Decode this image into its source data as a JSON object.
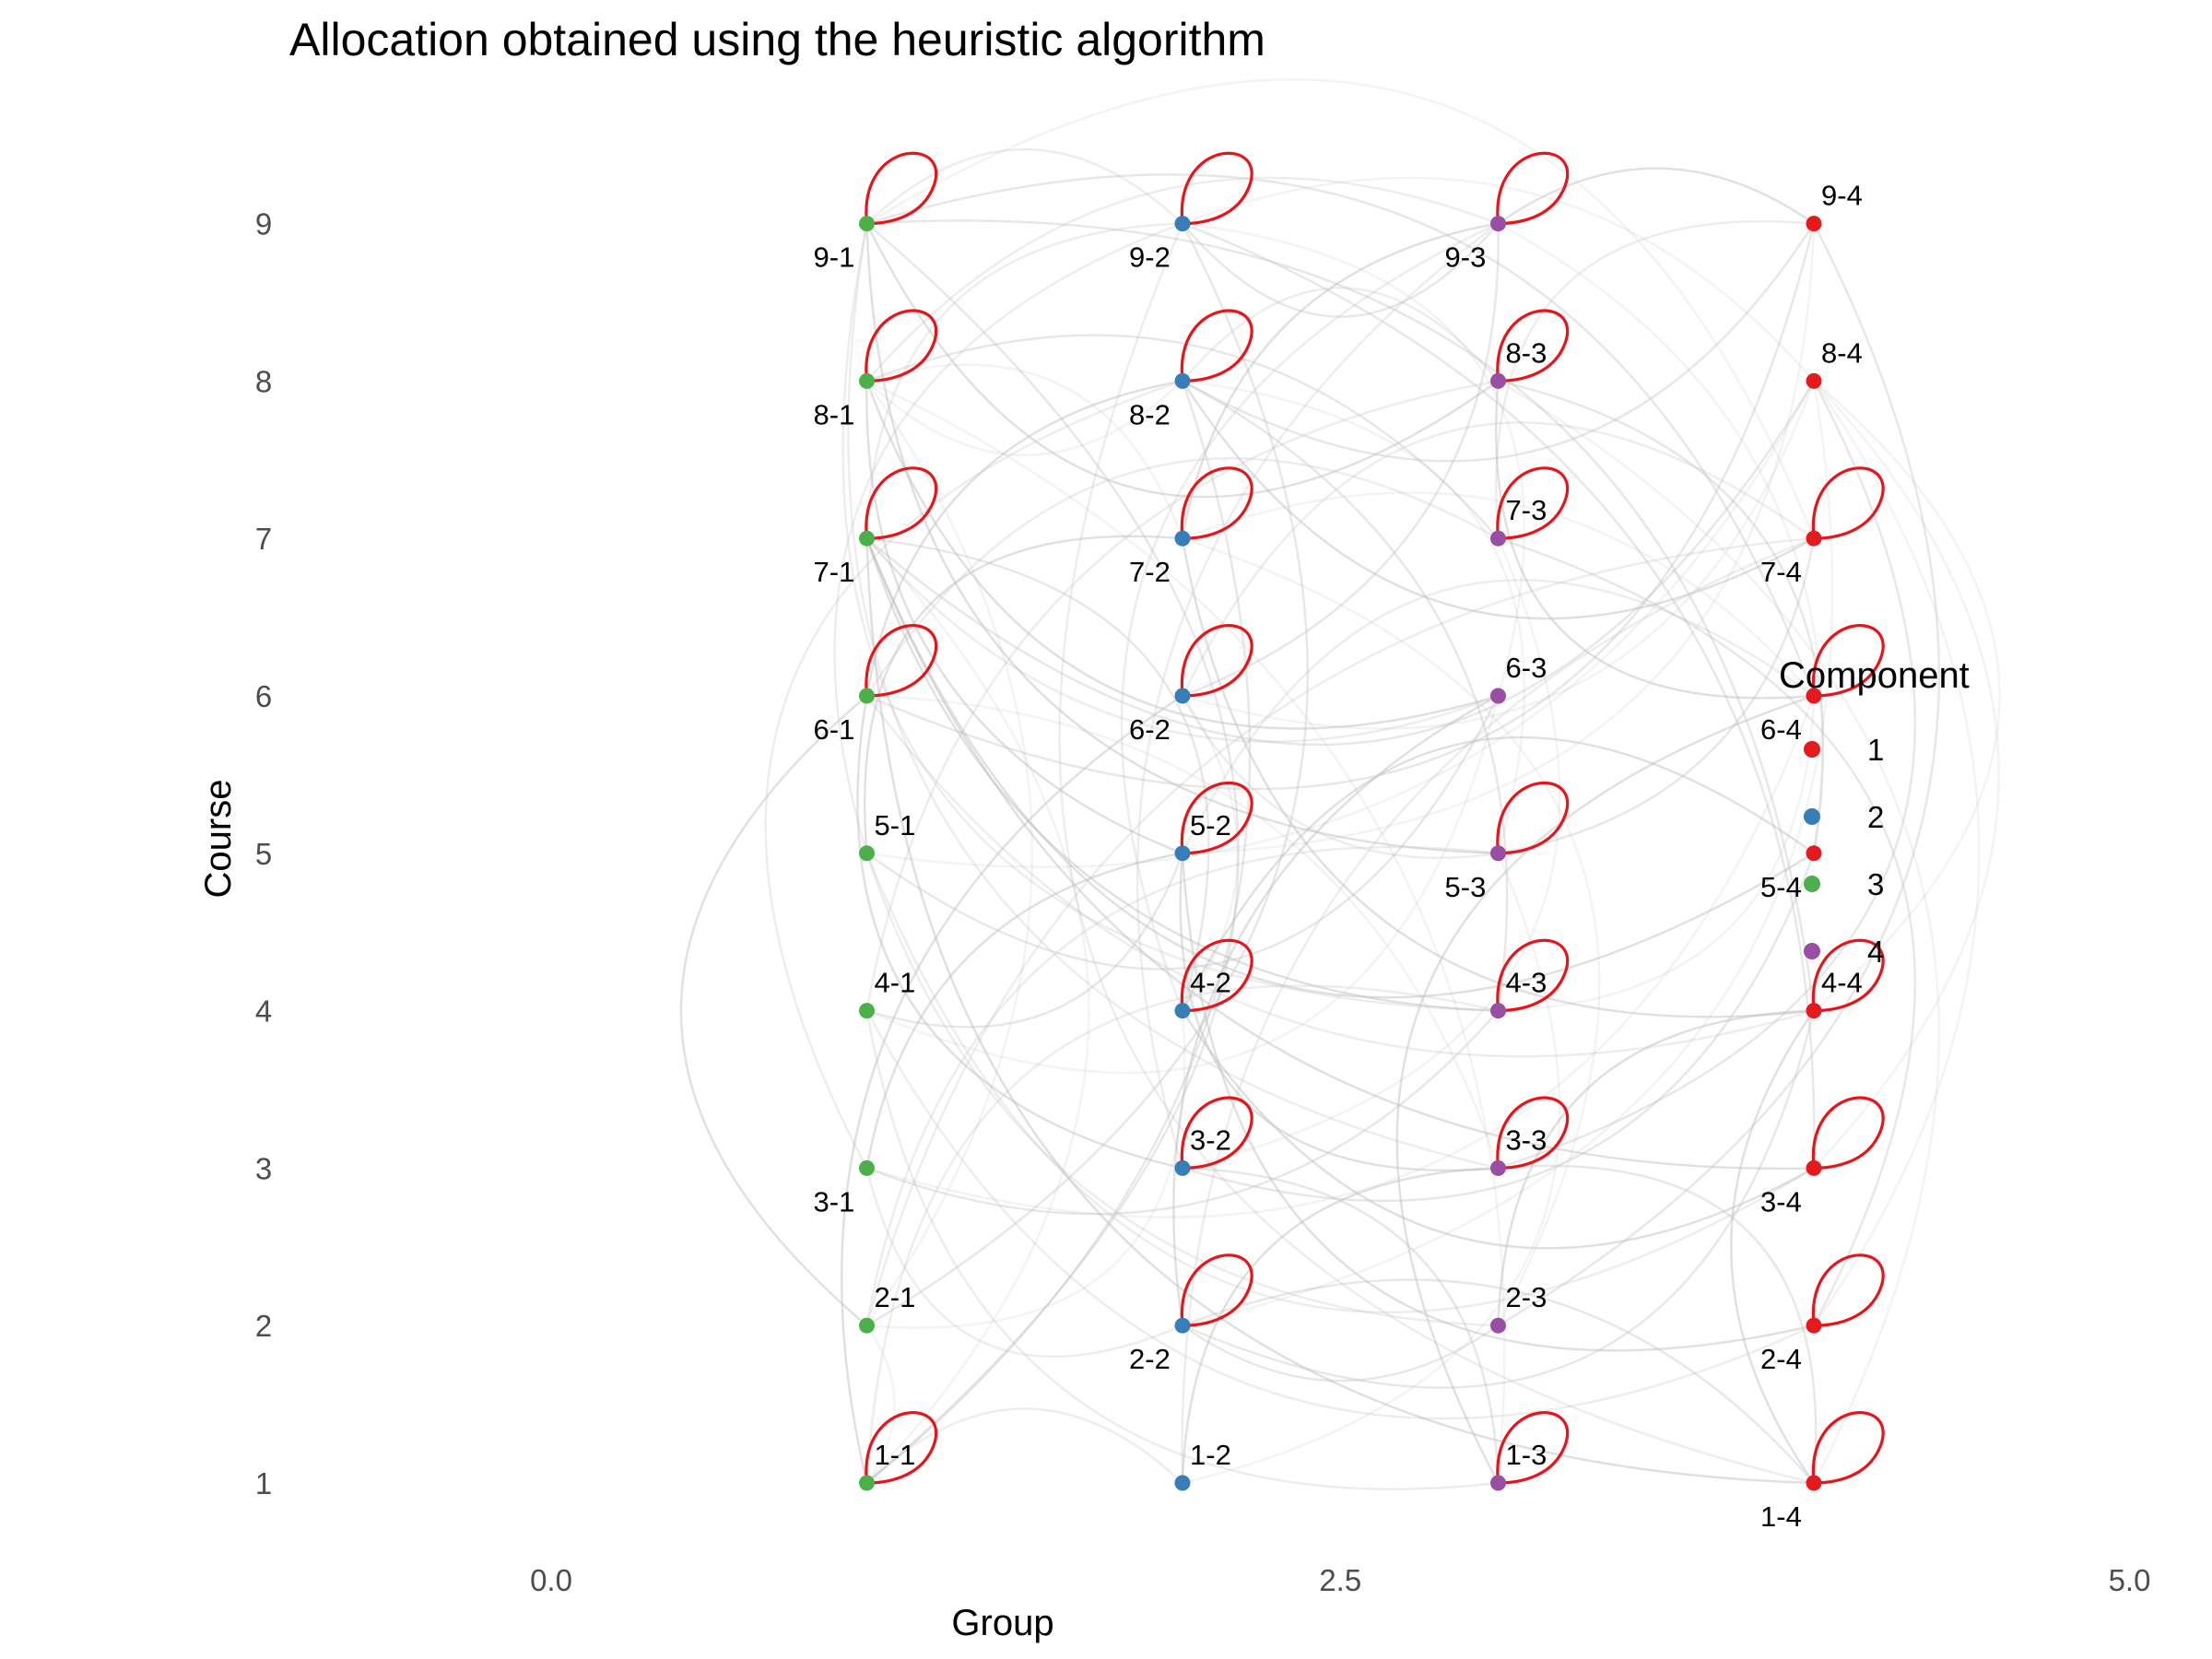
{
  "chart_data": {
    "type": "network",
    "title": "Allocation obtained using the heuristic algorithm",
    "xlabel": "Group",
    "ylabel": "Course",
    "xlim": [
      -1.0,
      7.0
    ],
    "ylim": [
      0.7,
      9.5
    ],
    "x_ticks": [
      0.0,
      2.5,
      5.0
    ],
    "x_tick_labels": [
      "0.0",
      "2.5",
      "5.0"
    ],
    "y_ticks": [
      1,
      2,
      3,
      4,
      5,
      6,
      7,
      8,
      9
    ],
    "y_tick_labels": [
      "1",
      "2",
      "3",
      "4",
      "5",
      "6",
      "7",
      "8",
      "9"
    ],
    "grid": false,
    "legend": {
      "title": "Component",
      "position": "right",
      "items": [
        {
          "label": "1",
          "color": "#E41A1C"
        },
        {
          "label": "2",
          "color": "#377EB8"
        },
        {
          "label": "3",
          "color": "#4DAF4A"
        },
        {
          "label": "4",
          "color": "#984EA3"
        }
      ]
    },
    "loop_color": "#E8141A",
    "edge_color": "#BFBFBF",
    "nodes": [
      {
        "label": "1-1",
        "x": 1,
        "y": 1,
        "component": 3,
        "label_pos": "above",
        "loop": true
      },
      {
        "label": "1-2",
        "x": 2,
        "y": 1,
        "component": 2,
        "label_pos": "above",
        "loop": false
      },
      {
        "label": "1-3",
        "x": 3,
        "y": 1,
        "component": 4,
        "label_pos": "above",
        "loop": true
      },
      {
        "label": "1-4",
        "x": 4,
        "y": 1,
        "component": 1,
        "label_pos": "below",
        "loop": true
      },
      {
        "label": "2-1",
        "x": 1,
        "y": 2,
        "component": 3,
        "label_pos": "above",
        "loop": false
      },
      {
        "label": "2-2",
        "x": 2,
        "y": 2,
        "component": 2,
        "label_pos": "below",
        "loop": true
      },
      {
        "label": "2-3",
        "x": 3,
        "y": 2,
        "component": 4,
        "label_pos": "above",
        "loop": false
      },
      {
        "label": "2-4",
        "x": 4,
        "y": 2,
        "component": 1,
        "label_pos": "below",
        "loop": true
      },
      {
        "label": "3-1",
        "x": 1,
        "y": 3,
        "component": 3,
        "label_pos": "below",
        "loop": false
      },
      {
        "label": "3-2",
        "x": 2,
        "y": 3,
        "component": 2,
        "label_pos": "above",
        "loop": true
      },
      {
        "label": "3-3",
        "x": 3,
        "y": 3,
        "component": 4,
        "label_pos": "above",
        "loop": true
      },
      {
        "label": "3-4",
        "x": 4,
        "y": 3,
        "component": 1,
        "label_pos": "below",
        "loop": true
      },
      {
        "label": "4-1",
        "x": 1,
        "y": 4,
        "component": 3,
        "label_pos": "above",
        "loop": false
      },
      {
        "label": "4-2",
        "x": 2,
        "y": 4,
        "component": 2,
        "label_pos": "above",
        "loop": true
      },
      {
        "label": "4-3",
        "x": 3,
        "y": 4,
        "component": 4,
        "label_pos": "above",
        "loop": true
      },
      {
        "label": "4-4",
        "x": 4,
        "y": 4,
        "component": 1,
        "label_pos": "above",
        "loop": true
      },
      {
        "label": "5-1",
        "x": 1,
        "y": 5,
        "component": 3,
        "label_pos": "above",
        "loop": false
      },
      {
        "label": "5-2",
        "x": 2,
        "y": 5,
        "component": 2,
        "label_pos": "above",
        "loop": true
      },
      {
        "label": "5-3",
        "x": 3,
        "y": 5,
        "component": 4,
        "label_pos": "below",
        "loop": true
      },
      {
        "label": "5-4",
        "x": 4,
        "y": 5,
        "component": 1,
        "label_pos": "below",
        "loop": false
      },
      {
        "label": "6-1",
        "x": 1,
        "y": 6,
        "component": 3,
        "label_pos": "below",
        "loop": true
      },
      {
        "label": "6-2",
        "x": 2,
        "y": 6,
        "component": 2,
        "label_pos": "below",
        "loop": true
      },
      {
        "label": "6-3",
        "x": 3,
        "y": 6,
        "component": 4,
        "label_pos": "above",
        "loop": false
      },
      {
        "label": "6-4",
        "x": 4,
        "y": 6,
        "component": 1,
        "label_pos": "below",
        "loop": true
      },
      {
        "label": "7-1",
        "x": 1,
        "y": 7,
        "component": 3,
        "label_pos": "below",
        "loop": true
      },
      {
        "label": "7-2",
        "x": 2,
        "y": 7,
        "component": 2,
        "label_pos": "below",
        "loop": true
      },
      {
        "label": "7-3",
        "x": 3,
        "y": 7,
        "component": 4,
        "label_pos": "above",
        "loop": true
      },
      {
        "label": "7-4",
        "x": 4,
        "y": 7,
        "component": 1,
        "label_pos": "below",
        "loop": true
      },
      {
        "label": "8-1",
        "x": 1,
        "y": 8,
        "component": 3,
        "label_pos": "below",
        "loop": true
      },
      {
        "label": "8-2",
        "x": 2,
        "y": 8,
        "component": 2,
        "label_pos": "below",
        "loop": true
      },
      {
        "label": "8-3",
        "x": 3,
        "y": 8,
        "component": 4,
        "label_pos": "above",
        "loop": true
      },
      {
        "label": "8-4",
        "x": 4,
        "y": 8,
        "component": 1,
        "label_pos": "above",
        "loop": false
      },
      {
        "label": "9-1",
        "x": 1,
        "y": 9,
        "component": 3,
        "label_pos": "below",
        "loop": true
      },
      {
        "label": "9-2",
        "x": 2,
        "y": 9,
        "component": 2,
        "label_pos": "below",
        "loop": true
      },
      {
        "label": "9-3",
        "x": 3,
        "y": 9,
        "component": 4,
        "label_pos": "below",
        "loop": true
      },
      {
        "label": "9-4",
        "x": 4,
        "y": 9,
        "component": 1,
        "label_pos": "above",
        "loop": false
      }
    ],
    "edges": [
      [
        "1-1",
        "2-1"
      ],
      [
        "1-1",
        "1-2"
      ],
      [
        "1-1",
        "9-1"
      ],
      [
        "1-1",
        "6-2"
      ],
      [
        "1-1",
        "7-1"
      ],
      [
        "1-1",
        "4-3"
      ],
      [
        "1-1",
        "8-2"
      ],
      [
        "1-2",
        "3-3"
      ],
      [
        "1-2",
        "5-3"
      ],
      [
        "1-2",
        "7-4"
      ],
      [
        "1-3",
        "3-2"
      ],
      [
        "1-3",
        "6-4"
      ],
      [
        "1-3",
        "8-1"
      ],
      [
        "1-3",
        "4-1"
      ],
      [
        "1-4",
        "3-3"
      ],
      [
        "1-4",
        "4-4"
      ],
      [
        "1-4",
        "8-3"
      ],
      [
        "1-4",
        "9-2"
      ],
      [
        "1-4",
        "2-2"
      ],
      [
        "1-4",
        "7-1"
      ],
      [
        "2-1",
        "4-2"
      ],
      [
        "2-1",
        "7-4"
      ],
      [
        "2-1",
        "9-2"
      ],
      [
        "2-1",
        "6-1"
      ],
      [
        "2-1",
        "8-1"
      ],
      [
        "2-1",
        "5-3"
      ],
      [
        "2-2",
        "4-4"
      ],
      [
        "2-2",
        "6-3"
      ],
      [
        "2-2",
        "8-4"
      ],
      [
        "2-2",
        "3-1"
      ],
      [
        "2-2",
        "2-3"
      ],
      [
        "2-3",
        "4-4"
      ],
      [
        "2-3",
        "7-2"
      ],
      [
        "2-3",
        "5-1"
      ],
      [
        "2-3",
        "9-4"
      ],
      [
        "2-4",
        "5-2"
      ],
      [
        "2-4",
        "8-4"
      ],
      [
        "2-4",
        "4-1"
      ],
      [
        "2-4",
        "7-3"
      ],
      [
        "3-1",
        "5-2"
      ],
      [
        "3-1",
        "6-4"
      ],
      [
        "3-1",
        "8-2"
      ],
      [
        "3-1",
        "4-3"
      ],
      [
        "3-2",
        "6-1"
      ],
      [
        "3-2",
        "7-3"
      ],
      [
        "3-2",
        "9-3"
      ],
      [
        "3-2",
        "5-4"
      ],
      [
        "3-3",
        "5-2"
      ],
      [
        "3-3",
        "6-1"
      ],
      [
        "3-3",
        "9-1"
      ],
      [
        "3-3",
        "8-4"
      ],
      [
        "3-4",
        "7-1"
      ],
      [
        "3-4",
        "8-4"
      ],
      [
        "3-4",
        "5-1"
      ],
      [
        "3-4",
        "9-2"
      ],
      [
        "3-4",
        "4-2"
      ],
      [
        "4-1",
        "6-3"
      ],
      [
        "4-1",
        "8-3"
      ],
      [
        "4-1",
        "5-2"
      ],
      [
        "4-2",
        "5-4"
      ],
      [
        "4-2",
        "6-2"
      ],
      [
        "4-2",
        "9-3"
      ],
      [
        "4-2",
        "7-1"
      ],
      [
        "4-3",
        "7-1"
      ],
      [
        "4-3",
        "6-4"
      ],
      [
        "4-3",
        "9-1"
      ],
      [
        "4-3",
        "8-2"
      ],
      [
        "4-4",
        "7-2"
      ],
      [
        "4-4",
        "8-4"
      ],
      [
        "4-4",
        "6-1"
      ],
      [
        "4-4",
        "9-1"
      ],
      [
        "5-1",
        "7-2"
      ],
      [
        "5-1",
        "8-4"
      ],
      [
        "5-1",
        "9-2"
      ],
      [
        "5-1",
        "6-3"
      ],
      [
        "5-2",
        "8-1"
      ],
      [
        "5-2",
        "9-4"
      ],
      [
        "5-2",
        "6-4"
      ],
      [
        "5-3",
        "7-4"
      ],
      [
        "5-3",
        "9-1"
      ],
      [
        "5-3",
        "8-2"
      ],
      [
        "5-3",
        "6-2"
      ],
      [
        "5-4",
        "8-3"
      ],
      [
        "5-4",
        "7-1"
      ],
      [
        "5-4",
        "9-3"
      ],
      [
        "6-1",
        "7-3"
      ],
      [
        "6-1",
        "9-4"
      ],
      [
        "6-1",
        "8-2"
      ],
      [
        "6-2",
        "8-4"
      ],
      [
        "6-2",
        "7-4"
      ],
      [
        "6-2",
        "9-3"
      ],
      [
        "6-3",
        "8-1"
      ],
      [
        "6-3",
        "9-2"
      ],
      [
        "6-3",
        "7-1"
      ],
      [
        "6-4",
        "9-1"
      ],
      [
        "6-4",
        "8-3"
      ],
      [
        "6-4",
        "7-2"
      ],
      [
        "7-1",
        "9-2"
      ],
      [
        "7-1",
        "8-4"
      ],
      [
        "7-2",
        "9-3"
      ],
      [
        "7-2",
        "8-1"
      ],
      [
        "7-3",
        "9-4"
      ],
      [
        "7-3",
        "8-1"
      ],
      [
        "7-4",
        "8-2"
      ],
      [
        "7-4",
        "9-1"
      ],
      [
        "8-1",
        "9-3"
      ],
      [
        "8-2",
        "9-4"
      ],
      [
        "8-3",
        "9-1"
      ],
      [
        "8-4",
        "9-2"
      ],
      [
        "9-1",
        "9-2"
      ],
      [
        "9-2",
        "9-3"
      ],
      [
        "9-3",
        "9-4"
      ],
      [
        "8-1",
        "8-2"
      ],
      [
        "8-2",
        "8-3"
      ]
    ]
  }
}
